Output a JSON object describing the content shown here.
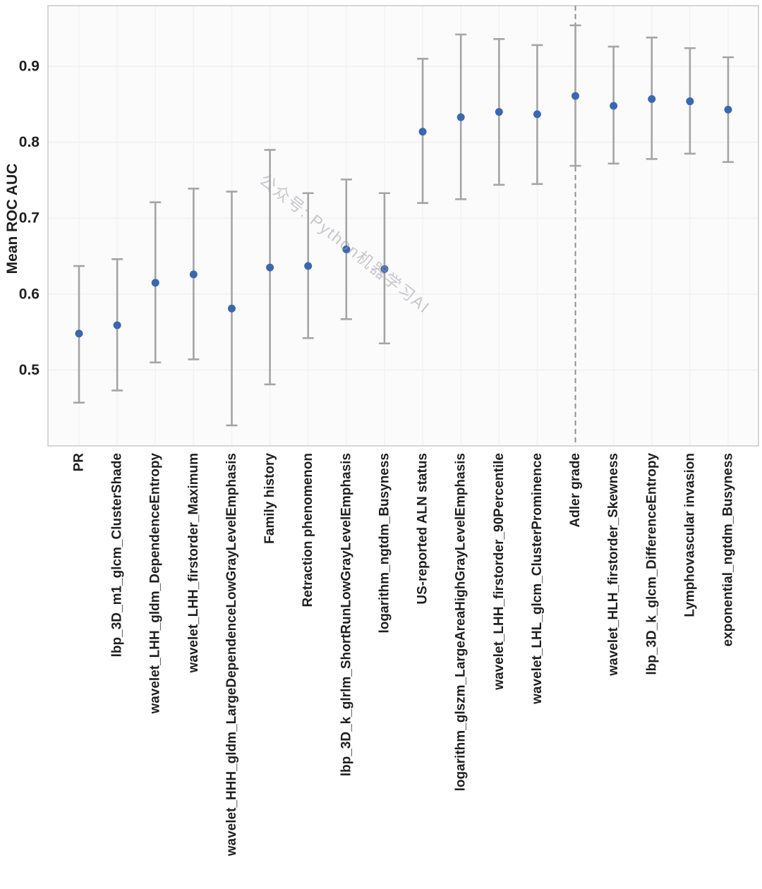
{
  "chart_data": {
    "type": "scatter",
    "title": "",
    "xlabel": "",
    "ylabel": "Mean ROC AUC",
    "ylim": [
      0.4,
      0.98
    ],
    "yticks": [
      0.5,
      0.6,
      0.7,
      0.8,
      0.9
    ],
    "ytick_labels": [
      "0.5",
      "0.6",
      "0.7",
      "0.8",
      "0.9"
    ],
    "grid": true,
    "legend": "none",
    "categories": [
      "PR",
      "lbp_3D_m1_glcm_ClusterShade",
      "wavelet_LHH_gldm_DependenceEntropy",
      "wavelet_LHH_firstorder_Maximum",
      "wavelet_HHH_gldm_LargeDependenceLowGrayLevelEmphasis",
      "Family history",
      "Retraction phenomenon",
      "lbp_3D_k_glrlm_ShortRunLowGrayLevelEmphasis",
      "logarithm_ngtdm_Busyness",
      "US-reported ALN status",
      "logarithm_glszm_LargeAreaHighGrayLevelEmphasis",
      "wavelet_LHH_firstorder_90Percentile",
      "wavelet_LHL_glcm_ClusterProminence",
      "Adler grade",
      "wavelet_HLH_firstorder_Skewness",
      "lbp_3D_k_glcm_DifferenceEntropy",
      "Lymphovascular invasion",
      "exponential_ngtdm_Busyness"
    ],
    "series": [
      {
        "name": "Mean ROC AUC",
        "values": [
          0.548,
          0.559,
          0.615,
          0.626,
          0.581,
          0.635,
          0.637,
          0.659,
          0.633,
          0.814,
          0.833,
          0.84,
          0.837,
          0.861,
          0.848,
          0.857,
          0.854,
          0.843
        ],
        "ci_low": [
          0.457,
          0.473,
          0.51,
          0.514,
          0.427,
          0.481,
          0.542,
          0.567,
          0.535,
          0.72,
          0.725,
          0.744,
          0.745,
          0.769,
          0.772,
          0.778,
          0.785,
          0.774
        ],
        "ci_high": [
          0.637,
          0.646,
          0.721,
          0.739,
          0.735,
          0.79,
          0.733,
          0.751,
          0.733,
          0.91,
          0.942,
          0.936,
          0.928,
          0.954,
          0.926,
          0.938,
          0.924,
          0.912
        ]
      }
    ],
    "divider": {
      "category": "Adler grade",
      "style": "dashed"
    },
    "watermark": "公众号: Python机器学习AI",
    "colors": {
      "point": "#3A67B1",
      "errorbar": "#A5A5A5",
      "divider": "#8F8F8F",
      "grid": "#F3F1F2",
      "spine": "#C9C9C9",
      "plot_bg": "#FCFBFC",
      "text": "#1F1F1F",
      "watermark": "#9B9BA5"
    }
  }
}
